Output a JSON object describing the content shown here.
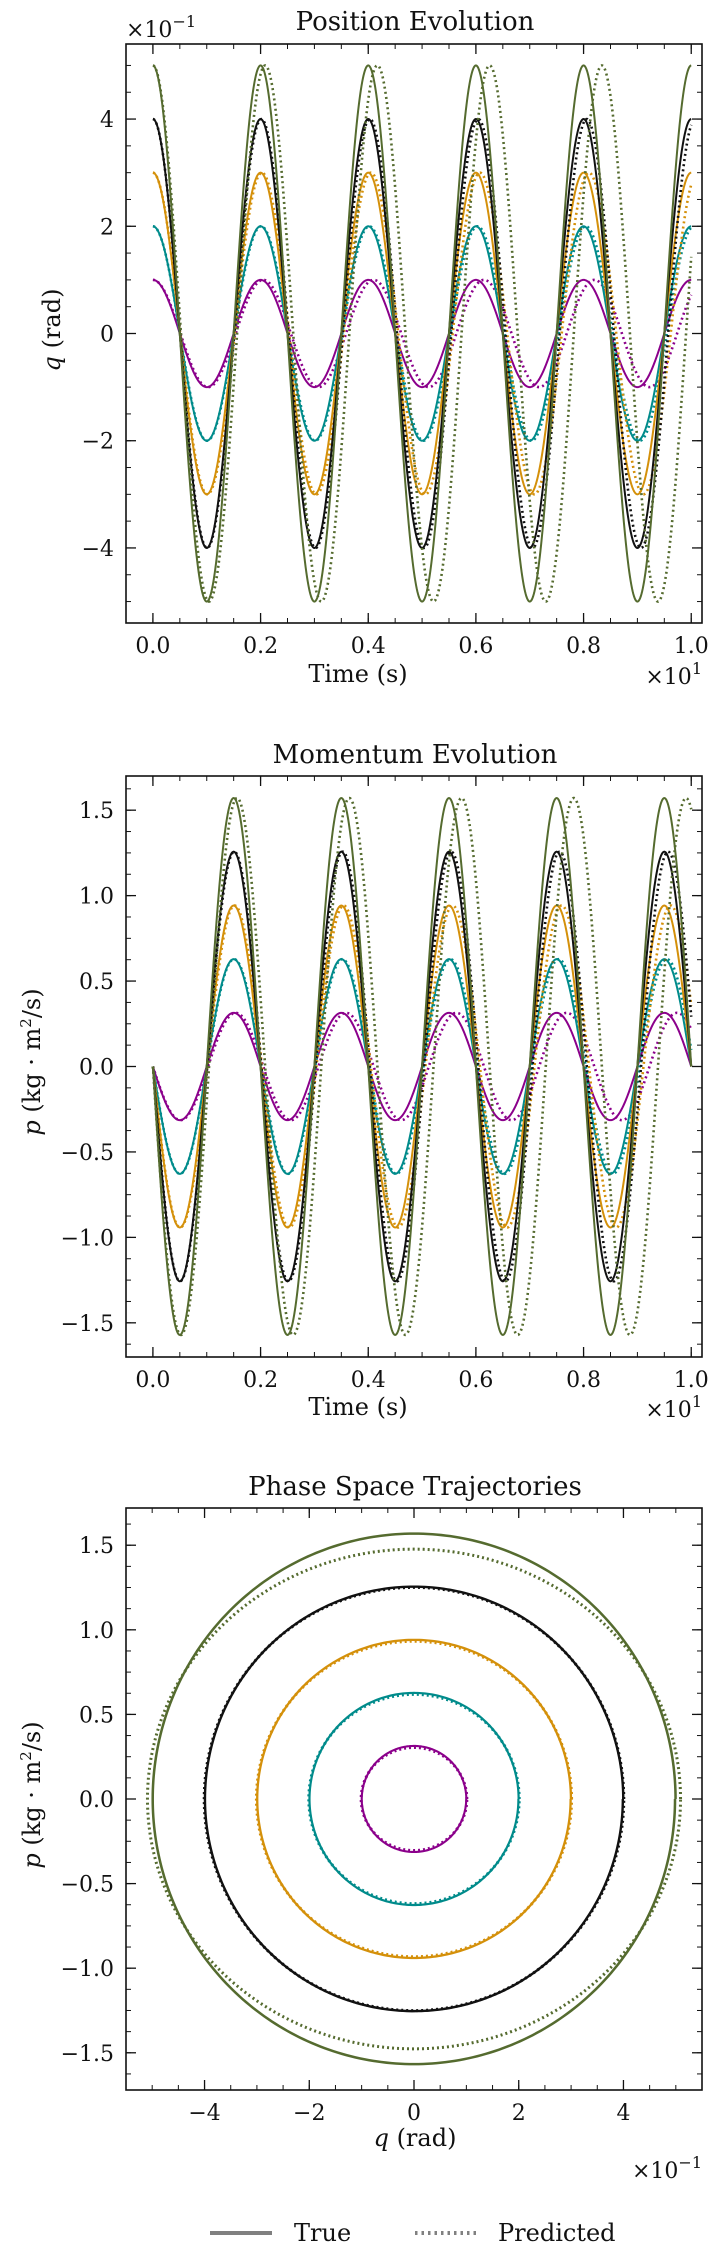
{
  "colors": {
    "purple": "#8b008b",
    "teal": "#008b8b",
    "gold": "#d4900a",
    "black": "#111111",
    "olive": "#556b2f",
    "legend_gray": "#808080"
  },
  "legend": {
    "true_label": "True",
    "predicted_label": "Predicted"
  },
  "chart_data": [
    {
      "id": "position",
      "type": "line",
      "title": "Position Evolution",
      "xlabel": "Time (s)",
      "ylabel_var": "q",
      "ylabel_unit": " (rad)",
      "x_multiplier": "×10",
      "x_multiplier_exp": "1",
      "y_multiplier": "×10",
      "y_multiplier_exp": "−1",
      "xlim": [
        -0.05,
        1.02
      ],
      "ylim": [
        -5.4,
        5.4
      ],
      "xticks": [
        0,
        0.2,
        0.4,
        0.6,
        0.8,
        1.0
      ],
      "xtick_labels": [
        "0.0",
        "0.2",
        "0.4",
        "0.6",
        "0.8",
        "1.0"
      ],
      "yticks": [
        -4,
        -2,
        0,
        2,
        4
      ],
      "ytick_labels": [
        "−4",
        "−2",
        "0",
        "2",
        "4"
      ],
      "series": [
        {
          "amplitude": 1,
          "color": "purple",
          "true_period": 0.2,
          "pred_period": 0.205
        },
        {
          "amplitude": 2,
          "color": "teal",
          "true_period": 0.2,
          "pred_period": 0.201
        },
        {
          "amplitude": 3,
          "color": "gold",
          "true_period": 0.2,
          "pred_period": 0.2025
        },
        {
          "amplitude": 4,
          "color": "black",
          "true_period": 0.2,
          "pred_period": 0.2015
        },
        {
          "amplitude": 5,
          "color": "olive",
          "true_period": 0.2,
          "pred_period": 0.2085
        }
      ]
    },
    {
      "id": "momentum",
      "type": "line",
      "title": "Momentum Evolution",
      "xlabel": "Time (s)",
      "ylabel_var": "p",
      "ylabel_unit": " (kg · m",
      "ylabel_unit_tail": "/s)",
      "x_multiplier": "×10",
      "x_multiplier_exp": "1",
      "xlim": [
        -0.05,
        1.02
      ],
      "ylim": [
        -1.7,
        1.7
      ],
      "xticks": [
        0,
        0.2,
        0.4,
        0.6,
        0.8,
        1.0
      ],
      "xtick_labels": [
        "0.0",
        "0.2",
        "0.4",
        "0.6",
        "0.8",
        "1.0"
      ],
      "yticks": [
        -1.5,
        -1.0,
        -0.5,
        0.0,
        0.5,
        1.0,
        1.5
      ],
      "ytick_labels": [
        "−1.5",
        "−1.0",
        "−0.5",
        "0.0",
        "0.5",
        "1.0",
        "1.5"
      ],
      "series": [
        {
          "amplitude": 0.314,
          "color": "purple",
          "true_period": 0.2,
          "pred_period": 0.205
        },
        {
          "amplitude": 0.628,
          "color": "teal",
          "true_period": 0.2,
          "pred_period": 0.201
        },
        {
          "amplitude": 0.942,
          "color": "gold",
          "true_period": 0.2,
          "pred_period": 0.2025
        },
        {
          "amplitude": 1.257,
          "color": "black",
          "true_period": 0.2,
          "pred_period": 0.2015
        },
        {
          "amplitude": 1.571,
          "color": "olive",
          "true_period": 0.2,
          "pred_period": 0.2085
        }
      ]
    },
    {
      "id": "phase",
      "type": "line",
      "title": "Phase Space Trajectories",
      "xlabel_var": "q",
      "xlabel_unit": " (rad)",
      "ylabel_var": "p",
      "ylabel_unit": " (kg · m",
      "ylabel_unit_tail": "/s)",
      "x_multiplier": "×10",
      "x_multiplier_exp": "−1",
      "xlim": [
        -5.5,
        5.5
      ],
      "ylim": [
        -1.72,
        1.72
      ],
      "xticks": [
        -4,
        -2,
        0,
        2,
        4
      ],
      "xtick_labels": [
        "−4",
        "−2",
        "0",
        "2",
        "4"
      ],
      "yticks": [
        -1.5,
        -1.0,
        -0.5,
        0.0,
        0.5,
        1.0,
        1.5
      ],
      "ytick_labels": [
        "−1.5",
        "−1.0",
        "−0.5",
        "0.0",
        "0.5",
        "1.0",
        "1.5"
      ],
      "series": [
        {
          "q_amplitude": 1,
          "p_amplitude": 0.314,
          "color": "purple",
          "pred_scale": 0.97
        },
        {
          "q_amplitude": 2,
          "p_amplitude": 0.628,
          "color": "teal",
          "pred_scale": 0.985
        },
        {
          "q_amplitude": 3,
          "p_amplitude": 0.942,
          "color": "gold",
          "pred_scale": 0.99
        },
        {
          "q_amplitude": 4,
          "p_amplitude": 1.257,
          "color": "black",
          "pred_scale": 0.995
        },
        {
          "q_amplitude": 5,
          "p_amplitude": 1.571,
          "color": "olive",
          "pred_scale": 0.94
        }
      ]
    }
  ]
}
